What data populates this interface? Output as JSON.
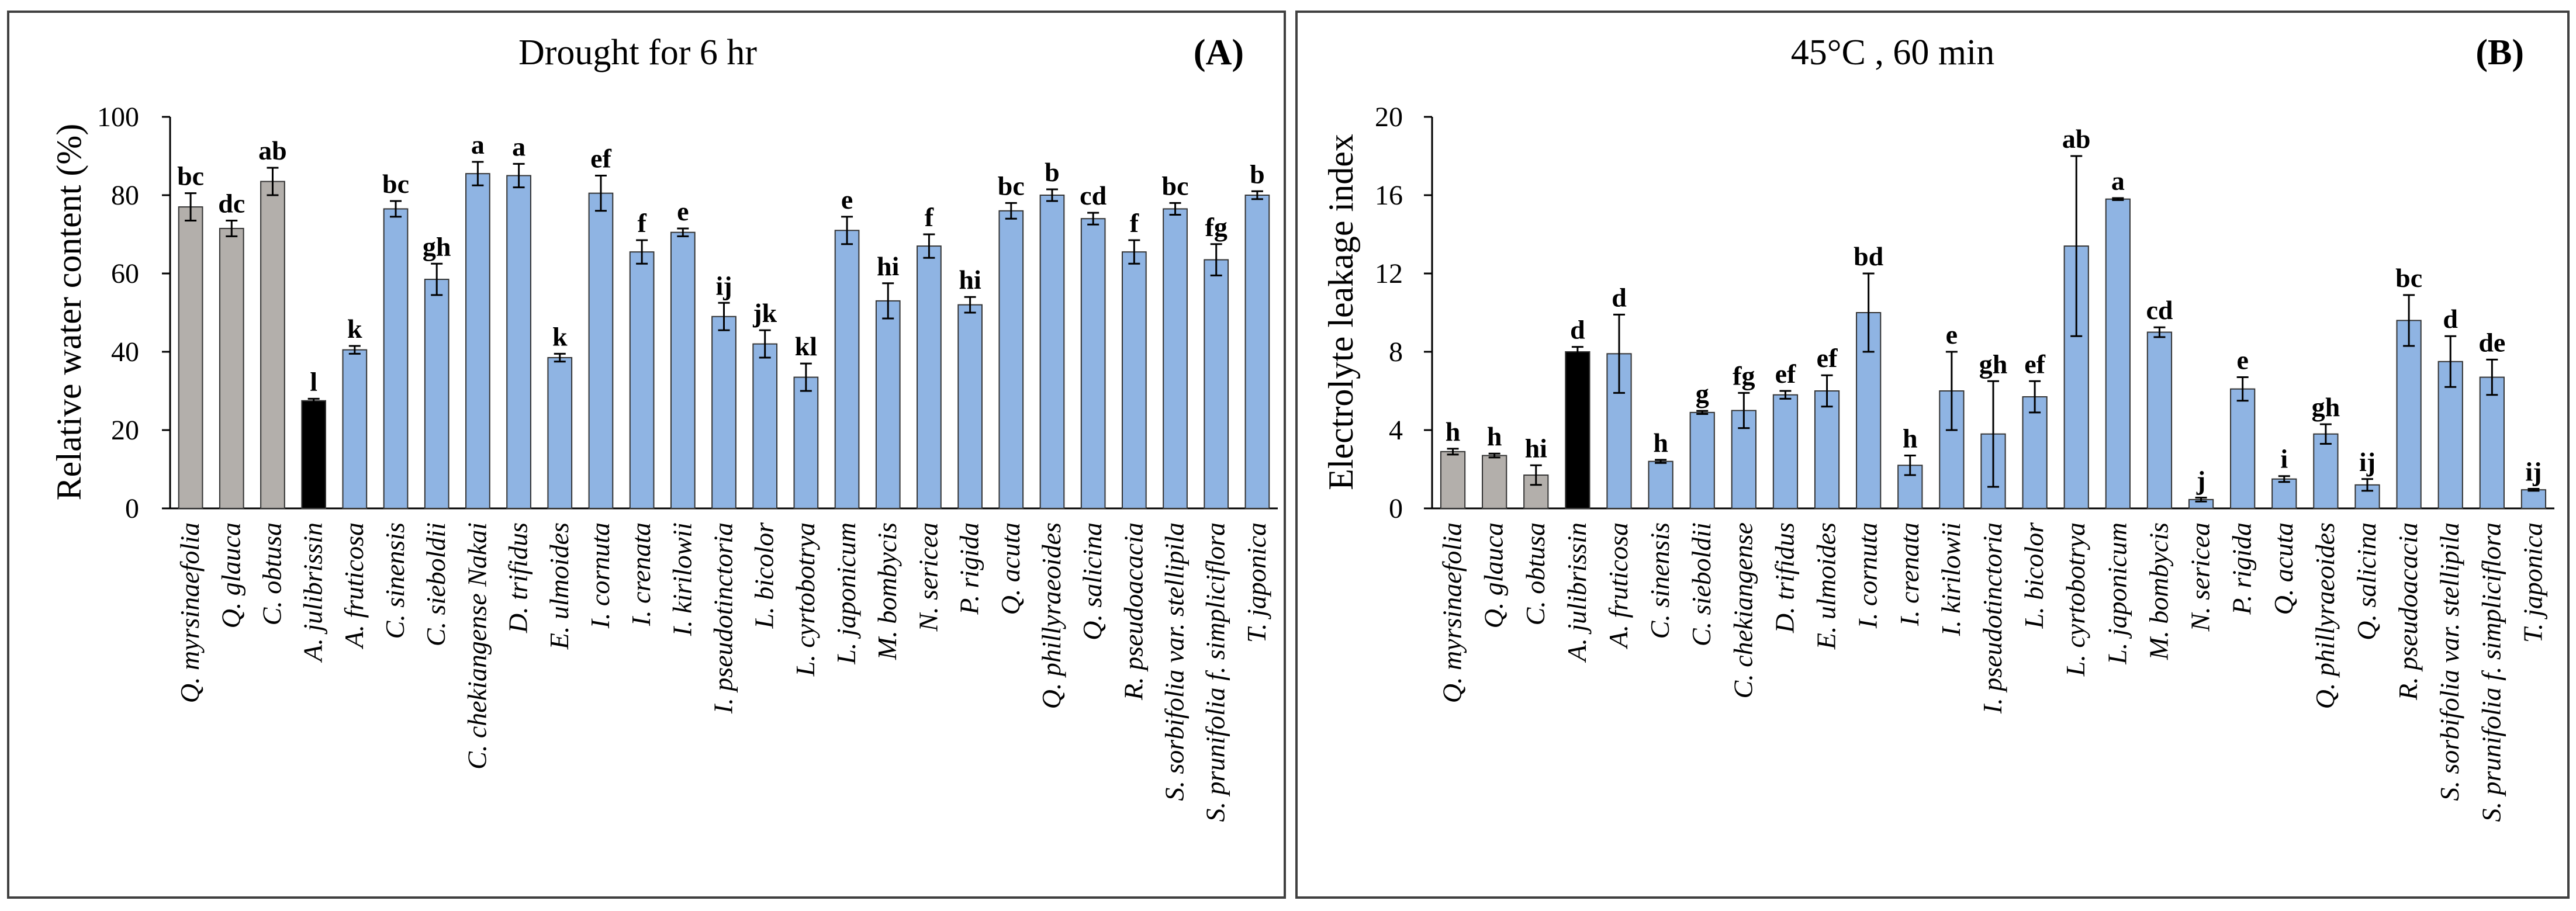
{
  "charts": [
    {
      "panel_label": "(A)",
      "colors": {
        "gray": "#B3AFAB",
        "black": "#000000",
        "blue": "#8FB4E3"
      },
      "chart_data": {
        "type": "bar",
        "title": "Drought for 6 hr",
        "xlabel": "",
        "ylabel": "Relative water content  (%)",
        "ylim": [
          0,
          100
        ],
        "yticks": [
          0,
          20,
          40,
          60,
          80,
          100
        ],
        "grid": false,
        "categories": [
          "Q. myrsinaefolia",
          "Q. glauca",
          "C. obtusa",
          "A. julibrissin",
          "A. fruticosa",
          "C. sinensis",
          "C. sieboldii",
          "C. chekiangense Nakai",
          "D. trifidus",
          "E. ulmoides",
          "I. cornuta",
          "I. crenata",
          "I. kirilowii",
          "I. pseudotinctoria",
          "L. bicolor",
          "L. cyrtobotrya",
          "L. japonicum",
          "M. bombycis",
          "N. sericea",
          "P. rigida",
          "Q. acuta",
          "Q. phillyraeoides",
          "Q. salicina",
          "R. pseudoacacia",
          "S. sorbifolia var. stellipila",
          "S. prunifolia f. simpliciflora",
          "T. japonica"
        ],
        "values": [
          77,
          71.5,
          83.5,
          27.5,
          40.5,
          76.5,
          58.5,
          85.5,
          85,
          38.5,
          80.5,
          65.5,
          70.5,
          49,
          42,
          33.5,
          71,
          53,
          67,
          52,
          76,
          80,
          74,
          65.5,
          76.5,
          63.5,
          80
        ],
        "errors": [
          3.5,
          2,
          3.5,
          0.5,
          1,
          2,
          4,
          3,
          3,
          1,
          4.5,
          3,
          1,
          3.5,
          3.5,
          3.5,
          3.5,
          4.5,
          3,
          2,
          2,
          1.5,
          1.5,
          3,
          1.5,
          4,
          1
        ],
        "significance": [
          "bc",
          "dc",
          "ab",
          "l",
          "k",
          "bc",
          "gh",
          "a",
          "a",
          "k",
          "ef",
          "f",
          "e",
          "ij",
          "jk",
          "kl",
          "e",
          "hi",
          "f",
          "hi",
          "bc",
          "b",
          "cd",
          "f",
          "bc",
          "fg",
          "b"
        ],
        "color_groups": [
          "gray",
          "gray",
          "gray",
          "black",
          "blue",
          "blue",
          "blue",
          "blue",
          "blue",
          "blue",
          "blue",
          "blue",
          "blue",
          "blue",
          "blue",
          "blue",
          "blue",
          "blue",
          "blue",
          "blue",
          "blue",
          "blue",
          "blue",
          "blue",
          "blue",
          "blue",
          "blue"
        ]
      }
    },
    {
      "panel_label": "(B)",
      "colors": {
        "gray": "#B3AFAB",
        "black": "#000000",
        "blue": "#8FB4E3"
      },
      "chart_data": {
        "type": "bar",
        "title": "45°C , 60 min",
        "xlabel": "",
        "ylabel": "Electrolyte leakage index",
        "ylim": [
          0,
          20
        ],
        "yticks": [
          0,
          4,
          8,
          12,
          16,
          20
        ],
        "grid": false,
        "categories": [
          "Q. myrsinaefolia",
          "Q. glauca",
          "C. obtusa",
          "A. julibrissin",
          "A. fruticosa",
          "C. sinensis",
          "C. sieboldii",
          "C. chekiangense",
          "D. trifidus",
          "E. ulmoides",
          "I. cornuta",
          "I. crenata",
          "I. kirilowii",
          "I. pseudotinctoria",
          "L. bicolor",
          "L. cyrtobotrya",
          "L. japonicum",
          "M. bombycis",
          "N. sericea",
          "P. rigida",
          "Q. acuta",
          "Q. phillyraeoides",
          "Q. salicina",
          "R. pseudoacacia",
          "S. sorbifolia var. stellipila",
          "S. prunifolia f. simpliciflora",
          "T. japonica"
        ],
        "values": [
          2.9,
          2.7,
          1.7,
          8.0,
          7.9,
          2.4,
          4.9,
          5.0,
          5.8,
          6.0,
          10.0,
          2.2,
          6.0,
          3.8,
          5.7,
          13.4,
          15.8,
          9.0,
          0.45,
          6.1,
          1.5,
          3.8,
          1.2,
          9.6,
          7.5,
          6.7,
          0.95
        ],
        "errors": [
          0.15,
          0.1,
          0.5,
          0.25,
          2.0,
          0.08,
          0.08,
          0.9,
          0.2,
          0.8,
          2.0,
          0.5,
          2.0,
          2.7,
          0.8,
          4.6,
          0.05,
          0.25,
          0.1,
          0.6,
          0.15,
          0.5,
          0.3,
          1.3,
          1.3,
          0.9,
          0.05
        ],
        "significance": [
          "h",
          "h",
          "hi",
          "d",
          "d",
          "h",
          "g",
          "fg",
          "ef",
          "ef",
          "bd",
          "h",
          "e",
          "gh",
          "ef",
          "ab",
          "a",
          "cd",
          "j",
          "e",
          "i",
          "gh",
          "ij",
          "bc",
          "d",
          "de",
          "ij"
        ],
        "color_groups": [
          "gray",
          "gray",
          "gray",
          "black",
          "blue",
          "blue",
          "blue",
          "blue",
          "blue",
          "blue",
          "blue",
          "blue",
          "blue",
          "blue",
          "blue",
          "blue",
          "blue",
          "blue",
          "blue",
          "blue",
          "blue",
          "blue",
          "blue",
          "blue",
          "blue",
          "blue",
          "blue"
        ]
      }
    }
  ]
}
